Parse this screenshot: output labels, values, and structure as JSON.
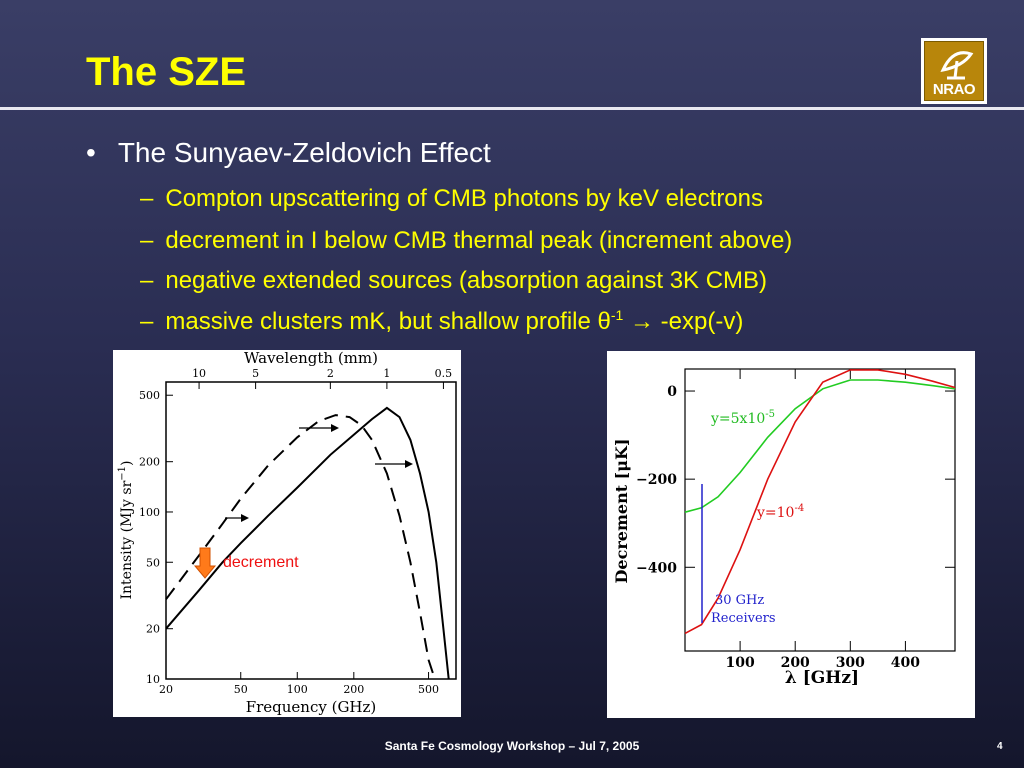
{
  "slide": {
    "title": "The SZE",
    "logo_text": "NRAO",
    "bullet": "The Sunyaev-Zeldovich Effect",
    "subbullets": [
      "Compton upscattering of CMB photons by keV electrons",
      "decrement in I below CMB thermal peak (increment above)",
      "negative extended sources (absorption against 3K CMB)"
    ],
    "sub4_prefix": "massive clusters mK, but shallow profile θ",
    "sub4_sup": "-1",
    "sub4_suffix": " → -exp(-v)",
    "dash": "–",
    "bullet_symbol": "•"
  },
  "footer": {
    "text": "Santa Fe Cosmology Workshop  – Jul 7, 2005",
    "page": "4"
  },
  "chart_data": [
    {
      "type": "line",
      "xlabel": "Frequency (GHz)",
      "ylabel": "Intensity (MJy sr",
      "ylabel_sup": "−1",
      "ylabel_close": ")",
      "top_axis_label": "Wavelength (mm)",
      "x_scale": "log",
      "y_scale": "log",
      "xlim": [
        20,
        700
      ],
      "ylim": [
        10,
        600
      ],
      "x_ticks": [
        "20",
        "50",
        "100",
        "200",
        "500"
      ],
      "y_ticks": [
        "10",
        "20",
        "50",
        "100",
        "200",
        "500"
      ],
      "top_ticks": [
        "10",
        "5",
        "2",
        "1",
        "0.5"
      ],
      "annotation": "decrement",
      "series": [
        {
          "style": "solid",
          "x": [
            20,
            30,
            40,
            50,
            70,
            100,
            150,
            200,
            250,
            300,
            350,
            400,
            450,
            500,
            550,
            600,
            640
          ],
          "values": [
            20,
            34,
            50,
            65,
            95,
            140,
            220,
            290,
            360,
            420,
            370,
            270,
            170,
            100,
            50,
            20,
            10
          ]
        },
        {
          "style": "dashed",
          "x": [
            20,
            30,
            40,
            50,
            70,
            100,
            130,
            160,
            190,
            220,
            250,
            300,
            350,
            400,
            450,
            500,
            540
          ],
          "values": [
            30,
            55,
            85,
            120,
            190,
            280,
            350,
            380,
            370,
            330,
            270,
            170,
            95,
            50,
            25,
            13,
            10
          ]
        }
      ]
    },
    {
      "type": "line",
      "xlabel": "λ [GHz]",
      "ylabel": "Decrement [μK]",
      "xlim": [
        0,
        490
      ],
      "ylim": [
        -590,
        50
      ],
      "x_ticks": [
        "100",
        "200",
        "300",
        "400"
      ],
      "y_ticks": [
        "0",
        "−200",
        "−400"
      ],
      "annotations": {
        "receiver_line1": "30 GHz",
        "receiver_line2": "Receivers"
      },
      "series": [
        {
          "name_base": "y=5x10",
          "name_sup": "-5",
          "color": "#22cc22",
          "x": [
            0,
            30,
            60,
            100,
            150,
            200,
            250,
            300,
            350,
            400,
            450,
            490
          ],
          "values": [
            -275,
            -265,
            -240,
            -185,
            -105,
            -40,
            5,
            25,
            25,
            20,
            12,
            5
          ]
        },
        {
          "name_base": "y=10",
          "name_sup": "-4",
          "color": "#dd1111",
          "x": [
            0,
            30,
            60,
            100,
            150,
            200,
            250,
            300,
            350,
            400,
            450,
            490
          ],
          "values": [
            -550,
            -530,
            -470,
            -360,
            -200,
            -70,
            20,
            48,
            48,
            38,
            22,
            8
          ]
        }
      ]
    }
  ]
}
